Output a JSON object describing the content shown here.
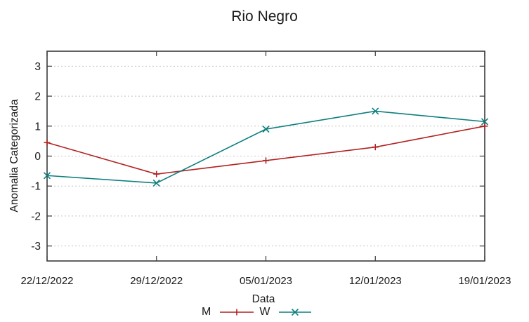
{
  "title": "Rio Negro",
  "chart_data": {
    "type": "line",
    "title": "Rio Negro",
    "xlabel": "Data",
    "ylabel": "Anomalia Categorizada",
    "categories": [
      "22/12/2022",
      "29/12/2022",
      "05/01/2023",
      "12/01/2023",
      "19/01/2023"
    ],
    "series": [
      {
        "name": "M",
        "color": "#b22222",
        "marker": "plus",
        "values": [
          0.45,
          -0.6,
          -0.15,
          0.3,
          1.0
        ]
      },
      {
        "name": "W",
        "color": "#0e7e7e",
        "marker": "cross",
        "values": [
          -0.65,
          -0.9,
          0.9,
          1.5,
          1.15
        ]
      }
    ],
    "ylim": [
      -3.5,
      3.5
    ],
    "yticks": [
      -3,
      -2,
      -1,
      0,
      1,
      2,
      3
    ],
    "grid": "horizontal-dashed",
    "legend_position": "bottom-center",
    "background_color": "#ffffff",
    "axis_color": "#3a3a3a",
    "grid_color": "#c4c4c4",
    "text_color": "#1a1a1a"
  }
}
